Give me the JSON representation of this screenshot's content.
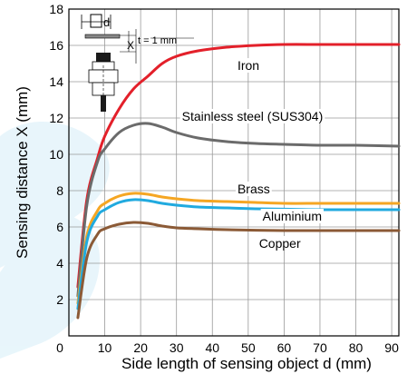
{
  "chart_data": {
    "type": "line",
    "title": "",
    "xlabel": "Side length of sensing object d (mm)",
    "ylabel": "Sensing distance X (mm)",
    "xlim": [
      0,
      92
    ],
    "ylim": [
      0,
      18
    ],
    "xticks": [
      0,
      10,
      20,
      30,
      40,
      50,
      60,
      70,
      80,
      90
    ],
    "yticks": [
      2,
      4,
      6,
      8,
      10,
      12,
      14,
      16,
      18
    ],
    "grid": true,
    "series": [
      {
        "name": "Iron",
        "color": "#e3202a",
        "x": [
          2.5,
          5,
          8,
          10,
          14,
          18,
          22,
          26,
          30,
          36,
          44,
          52,
          60,
          70,
          80,
          92
        ],
        "y": [
          2.7,
          7.5,
          9.8,
          11,
          12.5,
          13.6,
          14.3,
          15,
          15.4,
          15.7,
          15.9,
          16.0,
          16.05,
          16.05,
          16.05,
          16.05
        ]
      },
      {
        "name": "Stainless steel (SUS304)",
        "color": "#6b6b6b",
        "x": [
          2.5,
          5,
          8,
          10,
          14,
          18,
          22,
          26,
          30,
          36,
          44,
          52,
          60,
          70,
          80,
          92
        ],
        "y": [
          2.2,
          7.2,
          9.6,
          10.3,
          11.2,
          11.6,
          11.7,
          11.5,
          11.2,
          10.9,
          10.7,
          10.6,
          10.55,
          10.5,
          10.5,
          10.45
        ]
      },
      {
        "name": "Brass",
        "color": "#f5a623",
        "x": [
          2.5,
          5,
          8,
          10,
          14,
          18,
          22,
          26,
          30,
          36,
          44,
          52,
          60,
          70,
          80,
          92
        ],
        "y": [
          1.8,
          5.5,
          6.9,
          7.3,
          7.7,
          7.85,
          7.8,
          7.65,
          7.55,
          7.45,
          7.4,
          7.35,
          7.3,
          7.3,
          7.3,
          7.3
        ]
      },
      {
        "name": "Aluminium",
        "color": "#21aadf",
        "x": [
          2.5,
          5,
          8,
          10,
          14,
          18,
          22,
          26,
          30,
          36,
          44,
          52,
          60,
          70,
          80,
          92
        ],
        "y": [
          1.5,
          5.2,
          6.6,
          6.95,
          7.35,
          7.5,
          7.45,
          7.3,
          7.2,
          7.1,
          7.05,
          7.0,
          6.98,
          6.95,
          6.95,
          6.95
        ]
      },
      {
        "name": "Copper",
        "color": "#8b5a36",
        "x": [
          2.5,
          5,
          8,
          10,
          14,
          18,
          22,
          26,
          30,
          36,
          44,
          52,
          60,
          70,
          80,
          92
        ],
        "y": [
          1.0,
          4.3,
          5.6,
          5.9,
          6.15,
          6.25,
          6.2,
          6.05,
          5.95,
          5.9,
          5.85,
          5.82,
          5.8,
          5.8,
          5.8,
          5.8
        ]
      }
    ],
    "series_labels": [
      {
        "series": "Iron",
        "x": 47,
        "y": 14.9
      },
      {
        "series": "Stainless steel (SUS304)",
        "x": 31.5,
        "y": 12.1
      },
      {
        "series": "Brass",
        "x": 47,
        "y": 8.1
      },
      {
        "series": "Aluminium",
        "x": 54,
        "y": 6.6
      },
      {
        "series": "Copper",
        "x": 53,
        "y": 5.1
      }
    ],
    "annotation": {
      "thickness_label": "t = 1 mm",
      "d_label": "d",
      "x_label": "X"
    }
  }
}
